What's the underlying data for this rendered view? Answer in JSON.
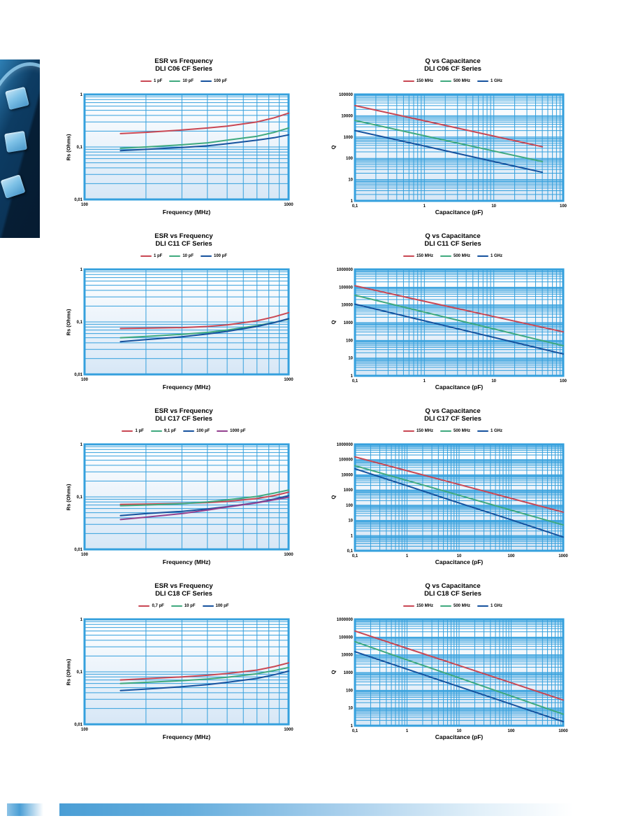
{
  "colors": {
    "grid": "#35a0dd",
    "plot_border": "#35a0dd",
    "plot_bg_top": "#ffffff",
    "plot_bg_bottom": "#d7e7f6",
    "red": "#c94753",
    "green": "#3fa97e",
    "blue": "#16529e",
    "purple": "#93408f",
    "footer_bar": "#4a9ed5"
  },
  "decor": {
    "photo": "capacitor-chips-photo"
  },
  "chart_data": [
    {
      "type": "line",
      "title": "ESR vs Frequency",
      "subtitle": "DLI C06 CF Series",
      "xlabel": "Frequency (MHz)",
      "ylabel": "Rs (Ohms)",
      "xscale": "log",
      "yscale": "log",
      "grid": true,
      "legend_position": "top",
      "xlim": [
        100,
        1000
      ],
      "ylim": [
        0.01,
        1
      ],
      "x_ticks": [
        {
          "v": 100,
          "label": "100"
        },
        {
          "v": 1000,
          "label": "1000"
        }
      ],
      "y_ticks": [
        {
          "v": 1,
          "label": "1"
        },
        {
          "v": 0.1,
          "label": "0,1"
        },
        {
          "v": 0.01,
          "label": "0,01"
        }
      ],
      "series": [
        {
          "name": "1 pF",
          "color": "#c94753",
          "x": [
            150,
            200,
            300,
            400,
            500,
            700,
            850,
            1000
          ],
          "y": [
            0.18,
            0.19,
            0.21,
            0.23,
            0.25,
            0.3,
            0.36,
            0.44
          ]
        },
        {
          "name": "10 pF",
          "color": "#3fa97e",
          "x": [
            150,
            200,
            300,
            400,
            500,
            700,
            850,
            1000
          ],
          "y": [
            0.095,
            0.1,
            0.11,
            0.12,
            0.135,
            0.16,
            0.19,
            0.23
          ]
        },
        {
          "name": "100 pF",
          "color": "#16529e",
          "x": [
            150,
            200,
            300,
            400,
            500,
            700,
            850,
            1000
          ],
          "y": [
            0.085,
            0.09,
            0.098,
            0.105,
            0.115,
            0.135,
            0.15,
            0.17
          ]
        }
      ]
    },
    {
      "type": "line",
      "title": "Q vs Capacitance",
      "subtitle": "DLI C06 CF Series",
      "xlabel": "Capacitance (pF)",
      "ylabel": "Q",
      "xscale": "log",
      "yscale": "log",
      "grid": true,
      "legend_position": "top",
      "xlim": [
        0.1,
        100
      ],
      "ylim": [
        1,
        100000
      ],
      "x_ticks": [
        {
          "v": 0.1,
          "label": "0,1"
        },
        {
          "v": 1,
          "label": "1"
        },
        {
          "v": 10,
          "label": "10"
        },
        {
          "v": 100,
          "label": "100"
        }
      ],
      "y_ticks": [
        {
          "v": 100000,
          "label": "100000"
        },
        {
          "v": 10000,
          "label": "10000"
        },
        {
          "v": 1000,
          "label": "1000"
        },
        {
          "v": 100,
          "label": "100"
        },
        {
          "v": 10,
          "label": "10"
        },
        {
          "v": 1,
          "label": "1"
        }
      ],
      "series": [
        {
          "name": "150 MHz",
          "color": "#c94753",
          "x": [
            0.1,
            1,
            10,
            50
          ],
          "y": [
            30000,
            5800,
            1100,
            350
          ]
        },
        {
          "name": "500 MHz",
          "color": "#3fa97e",
          "x": [
            0.1,
            1,
            10,
            50
          ],
          "y": [
            6000,
            1150,
            220,
            70
          ]
        },
        {
          "name": "1 GHz",
          "color": "#16529e",
          "x": [
            0.1,
            1,
            10,
            50
          ],
          "y": [
            2000,
            380,
            70,
            22
          ]
        }
      ]
    },
    {
      "type": "line",
      "title": "ESR vs Frequency",
      "subtitle": "DLI C11 CF Series",
      "xlabel": "Frequency (MHz)",
      "ylabel": "Rs (Ohms)",
      "xscale": "log",
      "yscale": "log",
      "grid": true,
      "legend_position": "top",
      "xlim": [
        100,
        1000
      ],
      "ylim": [
        0.01,
        1
      ],
      "x_ticks": [
        {
          "v": 100,
          "label": "100"
        },
        {
          "v": 1000,
          "label": "1000"
        }
      ],
      "y_ticks": [
        {
          "v": 1,
          "label": "1"
        },
        {
          "v": 0.1,
          "label": "0,1"
        },
        {
          "v": 0.01,
          "label": "0,01"
        }
      ],
      "series": [
        {
          "name": "1 pF",
          "color": "#c94753",
          "x": [
            150,
            200,
            300,
            400,
            500,
            700,
            850,
            1000
          ],
          "y": [
            0.075,
            0.076,
            0.078,
            0.082,
            0.088,
            0.105,
            0.125,
            0.15
          ]
        },
        {
          "name": "10 pF",
          "color": "#3fa97e",
          "x": [
            150,
            200,
            300,
            400,
            500,
            700,
            850,
            1000
          ],
          "y": [
            0.05,
            0.053,
            0.058,
            0.063,
            0.07,
            0.085,
            0.098,
            0.113
          ]
        },
        {
          "name": "100 pF",
          "color": "#16529e",
          "x": [
            150,
            200,
            300,
            400,
            500,
            700,
            850,
            1000
          ],
          "y": [
            0.042,
            0.046,
            0.052,
            0.059,
            0.066,
            0.082,
            0.097,
            0.115
          ]
        }
      ]
    },
    {
      "type": "line",
      "title": "Q vs Capacitance",
      "subtitle": "DLI C11 CF Series",
      "xlabel": "Capacitance (pF)",
      "ylabel": "Q",
      "xscale": "log",
      "yscale": "log",
      "grid": true,
      "legend_position": "top",
      "xlim": [
        0.1,
        100
      ],
      "ylim": [
        1,
        1000000
      ],
      "x_ticks": [
        {
          "v": 0.1,
          "label": "0,1"
        },
        {
          "v": 1,
          "label": "1"
        },
        {
          "v": 10,
          "label": "10"
        },
        {
          "v": 100,
          "label": "100"
        }
      ],
      "y_ticks": [
        {
          "v": 1000000,
          "label": "1000000"
        },
        {
          "v": 100000,
          "label": "100000"
        },
        {
          "v": 10000,
          "label": "10000"
        },
        {
          "v": 1000,
          "label": "1000"
        },
        {
          "v": 100,
          "label": "100"
        },
        {
          "v": 10,
          "label": "10"
        },
        {
          "v": 1,
          "label": "1"
        }
      ],
      "series": [
        {
          "name": "150 MHz",
          "color": "#c94753",
          "x": [
            0.1,
            1,
            10,
            100
          ],
          "y": [
            120000,
            16000,
            2200,
            300
          ]
        },
        {
          "name": "500 MHz",
          "color": "#3fa97e",
          "x": [
            0.1,
            1,
            10,
            100
          ],
          "y": [
            35000,
            3900,
            440,
            50
          ]
        },
        {
          "name": "1 GHz",
          "color": "#16529e",
          "x": [
            0.1,
            1,
            10,
            100
          ],
          "y": [
            11000,
            1270,
            147,
            17
          ]
        }
      ]
    },
    {
      "type": "line",
      "title": "ESR vs Frequency",
      "subtitle": "DLI C17 CF Series",
      "xlabel": "Frequency (MHz)",
      "ylabel": "Rs (Ohms)",
      "xscale": "log",
      "yscale": "log",
      "grid": true,
      "legend_position": "top",
      "xlim": [
        100,
        1000
      ],
      "ylim": [
        0.01,
        1
      ],
      "x_ticks": [
        {
          "v": 100,
          "label": "100"
        },
        {
          "v": 1000,
          "label": "1000"
        }
      ],
      "y_ticks": [
        {
          "v": 1,
          "label": "1"
        },
        {
          "v": 0.1,
          "label": "0,1"
        },
        {
          "v": 0.01,
          "label": "0,01"
        }
      ],
      "series": [
        {
          "name": "1 pF",
          "color": "#c94753",
          "x": [
            150,
            200,
            300,
            400,
            500,
            700,
            850,
            1000
          ],
          "y": [
            0.072,
            0.073,
            0.075,
            0.078,
            0.082,
            0.093,
            0.106,
            0.123
          ]
        },
        {
          "name": "9,1 pF",
          "color": "#3fa97e",
          "x": [
            150,
            200,
            300,
            400,
            500,
            700,
            850,
            1000
          ],
          "y": [
            0.068,
            0.07,
            0.074,
            0.08,
            0.088,
            0.102,
            0.118,
            0.135
          ]
        },
        {
          "name": "100 pF",
          "color": "#16529e",
          "x": [
            150,
            200,
            300,
            400,
            500,
            700,
            850,
            1000
          ],
          "y": [
            0.044,
            0.048,
            0.053,
            0.059,
            0.065,
            0.078,
            0.091,
            0.105
          ]
        },
        {
          "name": "1000 pF",
          "color": "#93408f",
          "x": [
            150,
            200,
            300,
            400,
            500,
            700,
            850,
            1000
          ],
          "y": [
            0.037,
            0.041,
            0.048,
            0.056,
            0.064,
            0.077,
            0.088,
            0.098
          ]
        }
      ]
    },
    {
      "type": "line",
      "title": "Q vs Capacitance",
      "subtitle": "DLI C17 CF Series",
      "xlabel": "Capacitance (pF)",
      "ylabel": "Q",
      "xscale": "log",
      "yscale": "log",
      "grid": true,
      "legend_position": "top",
      "xlim": [
        0.1,
        1000
      ],
      "ylim": [
        0.1,
        1000000
      ],
      "x_ticks": [
        {
          "v": 0.1,
          "label": "0,1"
        },
        {
          "v": 1,
          "label": "1"
        },
        {
          "v": 10,
          "label": "10"
        },
        {
          "v": 100,
          "label": "100"
        },
        {
          "v": 1000,
          "label": "1000"
        }
      ],
      "y_ticks": [
        {
          "v": 1000000,
          "label": "1000000"
        },
        {
          "v": 100000,
          "label": "100000"
        },
        {
          "v": 10000,
          "label": "10000"
        },
        {
          "v": 1000,
          "label": "1000"
        },
        {
          "v": 100,
          "label": "100"
        },
        {
          "v": 10,
          "label": "10"
        },
        {
          "v": 1,
          "label": "1"
        },
        {
          "v": 0.1,
          "label": "0,1"
        }
      ],
      "series": [
        {
          "name": "150 MHz",
          "color": "#c94753",
          "x": [
            0.1,
            1,
            10,
            100,
            1000
          ],
          "y": [
            150000,
            18500,
            2300,
            280,
            35
          ]
        },
        {
          "name": "500 MHz",
          "color": "#3fa97e",
          "x": [
            0.1,
            1,
            10,
            100,
            1000
          ],
          "y": [
            40000,
            4200,
            450,
            47,
            5
          ]
        },
        {
          "name": "1 GHz",
          "color": "#16529e",
          "x": [
            0.1,
            1,
            10,
            100,
            1000
          ],
          "y": [
            25000,
            1900,
            140,
            11,
            0.8
          ]
        }
      ]
    },
    {
      "type": "line",
      "title": "ESR vs Frequency",
      "subtitle": "DLI C18 CF Series",
      "xlabel": "Frequency (MHz)",
      "ylabel": "Rs (Ohms)",
      "xscale": "log",
      "yscale": "log",
      "grid": true,
      "legend_position": "top",
      "xlim": [
        100,
        1000
      ],
      "ylim": [
        0.01,
        1
      ],
      "x_ticks": [
        {
          "v": 100,
          "label": "100"
        },
        {
          "v": 1000,
          "label": "1000"
        }
      ],
      "y_ticks": [
        {
          "v": 1,
          "label": "1"
        },
        {
          "v": 0.1,
          "label": "0,1"
        },
        {
          "v": 0.01,
          "label": "0,01"
        }
      ],
      "series": [
        {
          "name": "0,7 pF",
          "color": "#c94753",
          "x": [
            150,
            200,
            300,
            400,
            500,
            700,
            850,
            1000
          ],
          "y": [
            0.07,
            0.074,
            0.08,
            0.086,
            0.093,
            0.108,
            0.126,
            0.148
          ]
        },
        {
          "name": "10 pF",
          "color": "#3fa97e",
          "x": [
            150,
            200,
            300,
            400,
            500,
            700,
            850,
            1000
          ],
          "y": [
            0.06,
            0.063,
            0.068,
            0.073,
            0.079,
            0.092,
            0.106,
            0.121
          ]
        },
        {
          "name": "100 pF",
          "color": "#16529e",
          "x": [
            150,
            200,
            300,
            400,
            500,
            700,
            850,
            1000
          ],
          "y": [
            0.044,
            0.047,
            0.052,
            0.057,
            0.063,
            0.075,
            0.088,
            0.103
          ]
        }
      ]
    },
    {
      "type": "line",
      "title": "Q vs Capacitance",
      "subtitle": "DLI C18 CF Series",
      "xlabel": "Capacitance (pF)",
      "ylabel": "Q",
      "xscale": "log",
      "yscale": "log",
      "grid": true,
      "legend_position": "top",
      "xlim": [
        0.1,
        1000
      ],
      "ylim": [
        1,
        1000000
      ],
      "x_ticks": [
        {
          "v": 0.1,
          "label": "0,1"
        },
        {
          "v": 1,
          "label": "1"
        },
        {
          "v": 10,
          "label": "10"
        },
        {
          "v": 100,
          "label": "100"
        },
        {
          "v": 1000,
          "label": "1000"
        }
      ],
      "y_ticks": [
        {
          "v": 1000000,
          "label": "1000000"
        },
        {
          "v": 100000,
          "label": "100000"
        },
        {
          "v": 10000,
          "label": "10000"
        },
        {
          "v": 1000,
          "label": "1000"
        },
        {
          "v": 100,
          "label": "100"
        },
        {
          "v": 10,
          "label": "10"
        },
        {
          "v": 1,
          "label": "1"
        }
      ],
      "series": [
        {
          "name": "150 MHz",
          "color": "#c94753",
          "x": [
            0.1,
            1,
            10,
            100,
            1000
          ],
          "y": [
            220000,
            23000,
            2500,
            265,
            28
          ]
        },
        {
          "name": "500 MHz",
          "color": "#3fa97e",
          "x": [
            0.1,
            1,
            10,
            100,
            1000
          ],
          "y": [
            55000,
            5200,
            500,
            47,
            4.5
          ]
        },
        {
          "name": "1 GHz",
          "color": "#16529e",
          "x": [
            0.1,
            1,
            10,
            100,
            1000
          ],
          "y": [
            15000,
            1550,
            160,
            16.5,
            1.7
          ]
        }
      ]
    }
  ]
}
